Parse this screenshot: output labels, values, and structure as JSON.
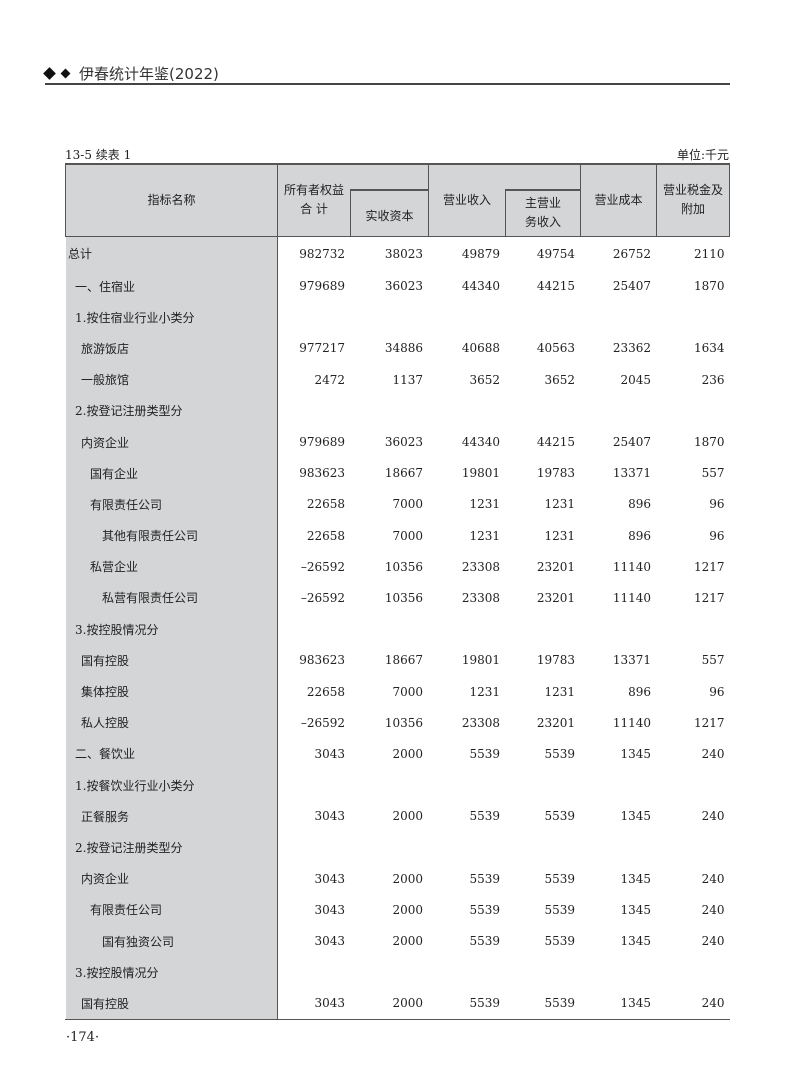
{
  "header": {
    "title": "伊春统计年鉴(2022)"
  },
  "caption": "13-5 续表 1",
  "unit": "单位:千元",
  "columns": {
    "name": "指标名称",
    "owner_equity": "所有者权益\n合 计",
    "paid_in_capital": "实收资本",
    "revenue": "营业收入",
    "main_revenue": "主营业\n务收入",
    "cost": "营业成本",
    "tax": "营业税金及\n附加"
  },
  "rows": [
    {
      "label": "总计",
      "level": 0,
      "values": [
        "982732",
        "38023",
        "49879",
        "49754",
        "26752",
        "2110"
      ]
    },
    {
      "label": "一、住宿业",
      "level": 1,
      "values": [
        "979689",
        "36023",
        "44340",
        "44215",
        "25407",
        "1870"
      ]
    },
    {
      "label": "1.按住宿业行业小类分",
      "level": 1,
      "values": []
    },
    {
      "label": "旅游饭店",
      "level": 2,
      "values": [
        "977217",
        "34886",
        "40688",
        "40563",
        "23362",
        "1634"
      ]
    },
    {
      "label": "一般旅馆",
      "level": 2,
      "values": [
        "2472",
        "1137",
        "3652",
        "3652",
        "2045",
        "236"
      ]
    },
    {
      "label": "2.按登记注册类型分",
      "level": 1,
      "values": []
    },
    {
      "label": "内资企业",
      "level": 2,
      "values": [
        "979689",
        "36023",
        "44340",
        "44215",
        "25407",
        "1870"
      ]
    },
    {
      "label": "国有企业",
      "level": 3,
      "values": [
        "983623",
        "18667",
        "19801",
        "19783",
        "13371",
        "557"
      ]
    },
    {
      "label": "有限责任公司",
      "level": 3,
      "values": [
        "22658",
        "7000",
        "1231",
        "1231",
        "896",
        "96"
      ]
    },
    {
      "label": "其他有限责任公司",
      "level": 4,
      "values": [
        "22658",
        "7000",
        "1231",
        "1231",
        "896",
        "96"
      ]
    },
    {
      "label": "私营企业",
      "level": 3,
      "values": [
        "–26592",
        "10356",
        "23308",
        "23201",
        "11140",
        "1217"
      ]
    },
    {
      "label": "私营有限责任公司",
      "level": 4,
      "values": [
        "–26592",
        "10356",
        "23308",
        "23201",
        "11140",
        "1217"
      ]
    },
    {
      "label": "3.按控股情况分",
      "level": 1,
      "values": []
    },
    {
      "label": "国有控股",
      "level": 2,
      "values": [
        "983623",
        "18667",
        "19801",
        "19783",
        "13371",
        "557"
      ]
    },
    {
      "label": "集体控股",
      "level": 2,
      "values": [
        "22658",
        "7000",
        "1231",
        "1231",
        "896",
        "96"
      ]
    },
    {
      "label": "私人控股",
      "level": 2,
      "values": [
        "–26592",
        "10356",
        "23308",
        "23201",
        "11140",
        "1217"
      ]
    },
    {
      "label": "二、餐饮业",
      "level": 1,
      "values": [
        "3043",
        "2000",
        "5539",
        "5539",
        "1345",
        "240"
      ]
    },
    {
      "label": "1.按餐饮业行业小类分",
      "level": 1,
      "values": []
    },
    {
      "label": "正餐服务",
      "level": 2,
      "values": [
        "3043",
        "2000",
        "5539",
        "5539",
        "1345",
        "240"
      ]
    },
    {
      "label": "2.按登记注册类型分",
      "level": 1,
      "values": []
    },
    {
      "label": "内资企业",
      "level": 2,
      "values": [
        "3043",
        "2000",
        "5539",
        "5539",
        "1345",
        "240"
      ]
    },
    {
      "label": "有限责任公司",
      "level": 3,
      "values": [
        "3043",
        "2000",
        "5539",
        "5539",
        "1345",
        "240"
      ]
    },
    {
      "label": "国有独资公司",
      "level": 4,
      "values": [
        "3043",
        "2000",
        "5539",
        "5539",
        "1345",
        "240"
      ]
    },
    {
      "label": "3.按控股情况分",
      "level": 1,
      "values": []
    },
    {
      "label": "国有控股",
      "level": 2,
      "values": [
        "3043",
        "2000",
        "5539",
        "5539",
        "1345",
        "240"
      ]
    }
  ],
  "page_number": "·174·"
}
